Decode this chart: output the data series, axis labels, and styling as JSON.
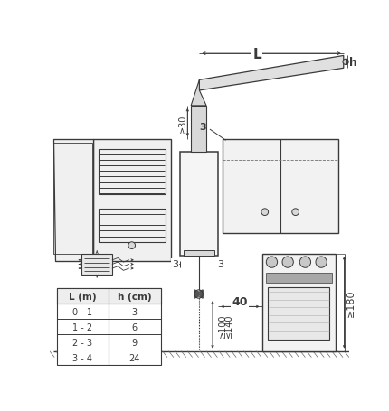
{
  "bg_color": "#ffffff",
  "line_color": "#3a3a3a",
  "table_data": [
    [
      "L (m)",
      "h (cm)"
    ],
    [
      "0 - 1",
      "3"
    ],
    [
      "1 - 2",
      "6"
    ],
    [
      "2 - 3",
      "9"
    ],
    [
      "3 - 4",
      "24"
    ]
  ],
  "dim_L": "L",
  "dim_h": "h",
  "dim_30": "≥30",
  "dim_3": "3",
  "dim_40": "40",
  "dim_100": "≥100",
  "dim_140": "≤140",
  "dim_180": "≥180"
}
